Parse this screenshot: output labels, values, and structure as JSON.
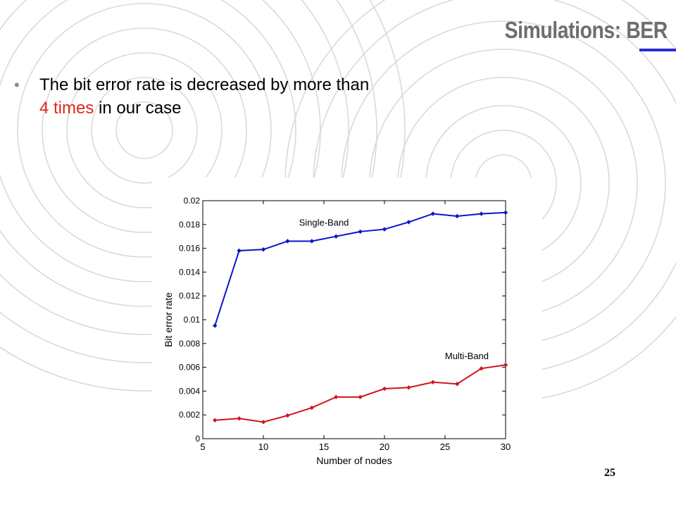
{
  "slide": {
    "title": "Simulations: BER",
    "bullet_main": "The bit error rate is decreased by more than",
    "bullet_highlight": "4 times",
    "bullet_tail": " in our case",
    "page_number": "25"
  },
  "colors": {
    "title": "#6e6e6e",
    "underline": "#2b2bd6",
    "highlight": "#e1251b",
    "single_band": "#0a14c8",
    "multi_band": "#d2141e",
    "rings": "#d9d9d9"
  },
  "chart_data": {
    "type": "line",
    "title": "",
    "xlabel": "Number of nodes",
    "ylabel": "Bit error rate",
    "xlim": [
      5,
      30
    ],
    "ylim": [
      0,
      0.02
    ],
    "xticks": [
      "5",
      "10",
      "15",
      "20",
      "25",
      "30"
    ],
    "yticks": [
      "0",
      "0.002",
      "0.004",
      "0.006",
      "0.008",
      "0.01",
      "0.012",
      "0.014",
      "0.016",
      "0.018",
      "0.02"
    ],
    "grid": false,
    "legend": "none",
    "x": [
      6,
      8,
      10,
      12,
      14,
      16,
      18,
      20,
      22,
      24,
      26,
      28,
      30
    ],
    "series": [
      {
        "name": "Single-Band",
        "color": "#0a14c8",
        "values": [
          0.0095,
          0.0158,
          0.0159,
          0.0166,
          0.0166,
          0.017,
          0.0174,
          0.0176,
          0.0182,
          0.0189,
          0.0187,
          0.0189,
          0.019
        ]
      },
      {
        "name": "Multi-Band",
        "color": "#d2141e",
        "values": [
          0.00155,
          0.0017,
          0.0014,
          0.00195,
          0.0026,
          0.0035,
          0.0035,
          0.0042,
          0.0043,
          0.00475,
          0.0046,
          0.0059,
          0.0062
        ]
      }
    ],
    "annotations": [
      "Single-Band",
      "Multi-Band"
    ]
  }
}
